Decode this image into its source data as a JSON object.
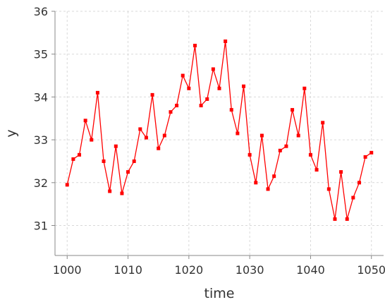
{
  "chart_data": {
    "type": "line",
    "title": "",
    "xlabel": "time",
    "ylabel": "y",
    "xlim": [
      998,
      1052
    ],
    "ylim": [
      30.3,
      36
    ],
    "grid": true,
    "x_ticks": [
      "1000",
      "1010",
      "1020",
      "1030",
      "1040",
      "1050"
    ],
    "y_ticks": [
      "31",
      "32",
      "33",
      "34",
      "35",
      "36"
    ],
    "series_color": "#ff0000",
    "series": [
      {
        "x": [
          1000,
          1001,
          1002,
          1003,
          1004,
          1005,
          1006,
          1007,
          1008,
          1009,
          1010,
          1011,
          1012,
          1013,
          1014,
          1015,
          1016,
          1017,
          1018,
          1019,
          1020,
          1021,
          1022,
          1023,
          1024,
          1025,
          1026,
          1027,
          1028,
          1029,
          1030,
          1031,
          1032,
          1033,
          1034,
          1035,
          1036,
          1037,
          1038,
          1039,
          1040,
          1041,
          1042,
          1043,
          1044,
          1045,
          1046,
          1047,
          1048,
          1049,
          1050
        ],
        "values": [
          31.95,
          32.55,
          32.65,
          33.45,
          33.0,
          34.1,
          32.5,
          31.8,
          32.85,
          31.75,
          32.25,
          32.5,
          33.25,
          33.05,
          34.05,
          32.8,
          33.1,
          33.65,
          33.8,
          34.5,
          34.2,
          35.2,
          33.8,
          33.95,
          34.65,
          34.2,
          35.3,
          33.7,
          33.15,
          34.25,
          32.65,
          32.0,
          33.1,
          31.85,
          32.15,
          32.75,
          32.85,
          33.7,
          33.1,
          34.2,
          32.65,
          32.3,
          33.4,
          31.85,
          31.15,
          32.25,
          31.15,
          31.65,
          32.0,
          32.6,
          32.7
        ]
      }
    ]
  }
}
